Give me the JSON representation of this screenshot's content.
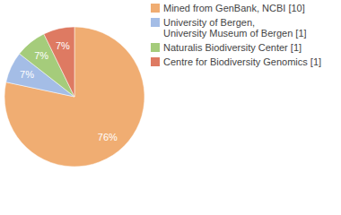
{
  "chart_data": {
    "type": "pie",
    "categories": [
      "Mined from GenBank, NCBI [10]",
      "University of Bergen, University Museum of Bergen [1]",
      "Naturalis Biodiversity Center [1]",
      "Centre for Biodiversity Genomics [1]"
    ],
    "values": [
      76,
      7,
      7,
      7
    ],
    "value_labels": [
      "76%",
      "7%",
      "7%",
      "7%"
    ],
    "colors": [
      "#f0ad72",
      "#a4bde6",
      "#a5cc7b",
      "#de7a62"
    ],
    "data_labels": true,
    "legend": "top-right"
  }
}
